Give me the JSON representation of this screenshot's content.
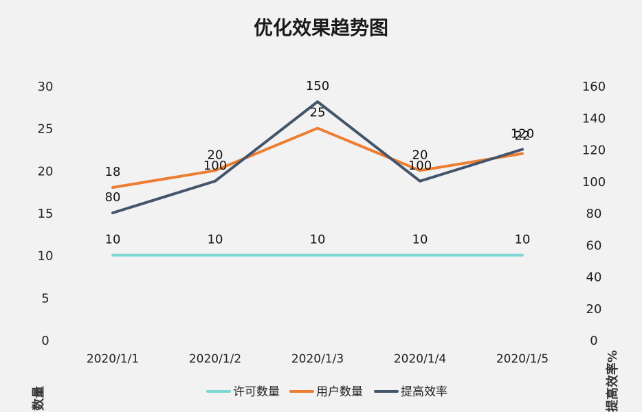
{
  "chart_data": {
    "type": "line",
    "title": "优化效果趋势图",
    "categories": [
      "2020/1/1",
      "2020/1/2",
      "2020/1/3",
      "2020/1/4",
      "2020/1/5"
    ],
    "y_left": {
      "label": "数量",
      "lim": [
        0,
        30
      ],
      "ticks": [
        0,
        5,
        10,
        15,
        20,
        25,
        30
      ]
    },
    "y_right": {
      "label": "提高效率%",
      "lim": [
        0,
        160
      ],
      "ticks": [
        0,
        20,
        40,
        60,
        80,
        100,
        120,
        140,
        160
      ]
    },
    "series": [
      {
        "name": "许可数量",
        "axis": "left",
        "color": "#7ed8d4",
        "values": [
          10,
          10,
          10,
          10,
          10
        ]
      },
      {
        "name": "用户数量",
        "axis": "left",
        "color": "#ed7d31",
        "values": [
          18,
          20,
          25,
          20,
          22
        ]
      },
      {
        "name": "提高效率",
        "axis": "right",
        "color": "#44546a",
        "values": [
          80,
          100,
          150,
          100,
          120
        ]
      }
    ],
    "legend_position": "bottom",
    "grid": false
  }
}
